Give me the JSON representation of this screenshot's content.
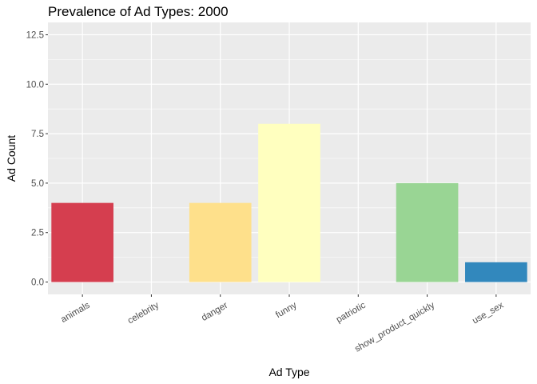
{
  "chart_data": {
    "type": "bar",
    "title": "Prevalence of Ad Types: 2000",
    "xlabel": "Ad Type",
    "ylabel": "Ad Count",
    "categories": [
      "animals",
      "celebrity",
      "danger",
      "funny",
      "patriotic",
      "show_product_quickly",
      "use_sex"
    ],
    "values": [
      4,
      0,
      4,
      8,
      0,
      5,
      1
    ],
    "colors": [
      "#D53E4F",
      "#F46D43",
      "#FEE08B",
      "#FFFFBF",
      "#E6F598",
      "#99D594",
      "#3288BD"
    ],
    "ylim": [
      -0.625,
      13.125
    ],
    "yticks": [
      0,
      2.5,
      5,
      7.5,
      10,
      12.5
    ],
    "ytick_labels": [
      "0.0",
      "2.5",
      "5.0",
      "7.5",
      "10.0",
      "12.5"
    ],
    "grid": true,
    "panel_background": "#EBEBEB",
    "legend": "none"
  }
}
